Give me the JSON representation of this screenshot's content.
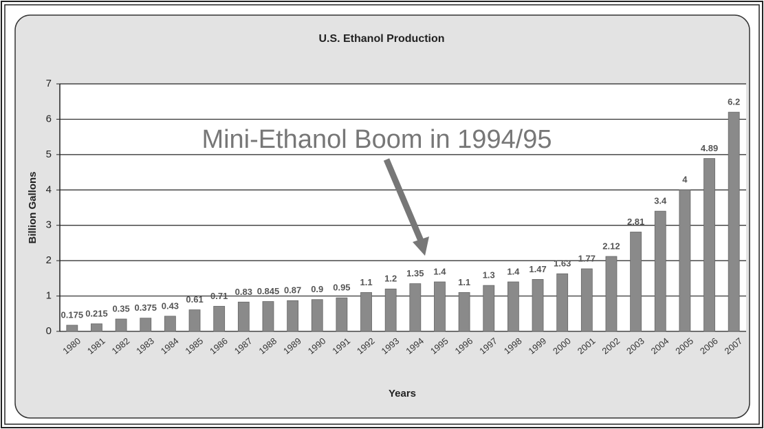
{
  "chart_data": {
    "type": "bar",
    "title": "U.S. Ethanol Production",
    "annotation": "Mini-Ethanol Boom in 1994/95",
    "x_label": "Years",
    "y_label": "Billion Gallons",
    "categories": [
      "1980",
      "1981",
      "1982",
      "1983",
      "1984",
      "1985",
      "1986",
      "1987",
      "1988",
      "1989",
      "1990",
      "1991",
      "1992",
      "1993",
      "1994",
      "1995",
      "1996",
      "1997",
      "1998",
      "1999",
      "2000",
      "2001",
      "2002",
      "2003",
      "2004",
      "2005",
      "2006",
      "2007"
    ],
    "values": [
      0.175,
      0.215,
      0.35,
      0.375,
      0.43,
      0.61,
      0.71,
      0.83,
      0.845,
      0.87,
      0.9,
      0.95,
      1.1,
      1.2,
      1.35,
      1.4,
      1.1,
      1.3,
      1.4,
      1.47,
      1.63,
      1.77,
      2.12,
      2.81,
      3.4,
      4,
      4.89,
      6.2
    ],
    "color": "#8a8a8a",
    "ylim": [
      0,
      7
    ],
    "yticks": [
      0,
      1,
      2,
      3,
      4,
      5,
      6,
      7
    ],
    "grid": true
  }
}
